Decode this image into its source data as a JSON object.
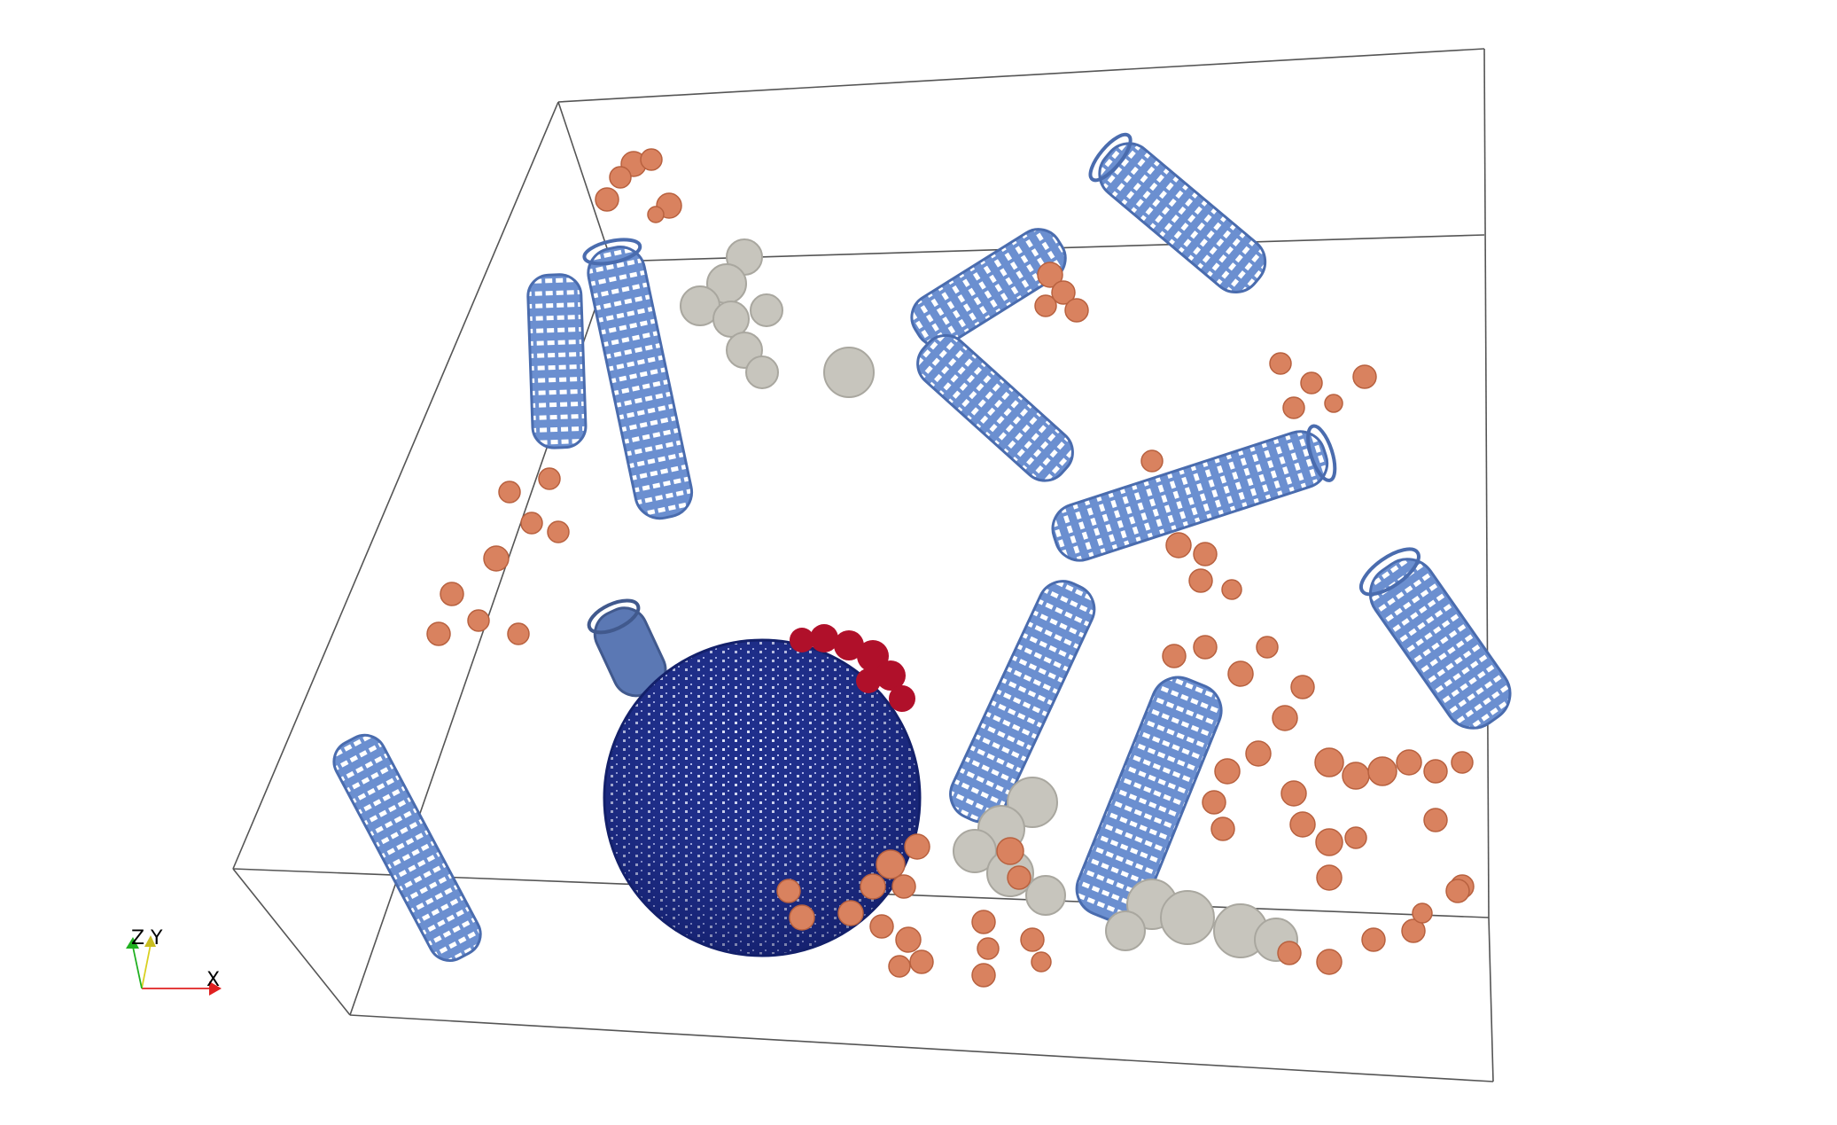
{
  "scene": {
    "background": "#ffffff",
    "colors": {
      "box_edge": "#555555",
      "microtubule": "#6b8fd0",
      "microtubule_dark": "#4a6cae",
      "sphere": "#1f2f8c",
      "sphere_dark": "#13206a",
      "sphere_hole": "#ffffff",
      "ribosome_cap": "#b0102a",
      "protein_orange": "#d9825f",
      "protein_orange_dark": "#b8613f",
      "protein_gray": "#c7c5bd",
      "protein_gray_dark": "#a9a79f"
    },
    "objects": [
      "microtubule",
      "vesicle",
      "protein-complex-orange",
      "protein-complex-gray",
      "ribosome-cluster"
    ]
  },
  "orientation_axes": {
    "x_label": "X",
    "y_label": "Y",
    "z_label": "Z",
    "x_color": "#e02020",
    "y_color": "#d9d020",
    "z_color": "#20b020"
  }
}
